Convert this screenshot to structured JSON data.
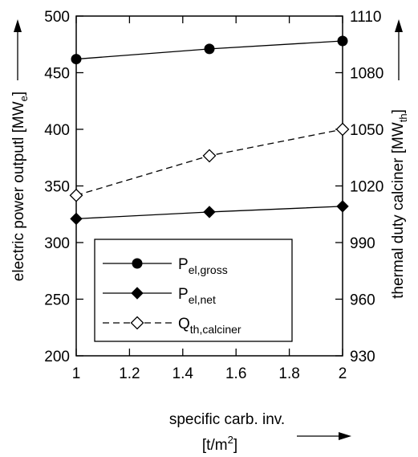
{
  "chart_data": {
    "type": "line",
    "x": [
      1,
      1.5,
      2
    ],
    "x_ticks": [
      "1",
      "1.2",
      "1.4",
      "1.6",
      "1.8",
      "2"
    ],
    "xlim": [
      1,
      2
    ],
    "xlabel_line1": "specific carb. inv.",
    "xlabel_line2_pre": "[t/m",
    "xlabel_line2_sup": "2",
    "xlabel_line2_post": "]",
    "y_left": {
      "label_pre": "electric power outputl [MW",
      "label_sub": "e",
      "label_post": "]",
      "lim": [
        200,
        500
      ],
      "ticks": [
        "200",
        "250",
        "300",
        "350",
        "400",
        "450",
        "500"
      ]
    },
    "y_right": {
      "label_pre": "thermal duty calciner [MW",
      "label_sub": "th",
      "label_post": "]",
      "lim": [
        930,
        1110
      ],
      "ticks": [
        "930",
        "960",
        "990",
        "1020",
        "1050",
        "1080",
        "1110"
      ]
    },
    "series": [
      {
        "name_main": "P",
        "name_sub": "el,gross",
        "axis": "left",
        "marker": "filled-circle",
        "line": "solid",
        "values": [
          462,
          471,
          478
        ]
      },
      {
        "name_main": "P",
        "name_sub": "el,net",
        "axis": "left",
        "marker": "filled-diamond",
        "line": "solid",
        "values": [
          321,
          327,
          332
        ]
      },
      {
        "name_main": "Q",
        "name_sub": "th,calciner",
        "axis": "right",
        "marker": "open-diamond",
        "line": "dashed",
        "values": [
          1015,
          1036,
          1050
        ]
      }
    ],
    "grid": false,
    "legend_position": "lower-left"
  }
}
